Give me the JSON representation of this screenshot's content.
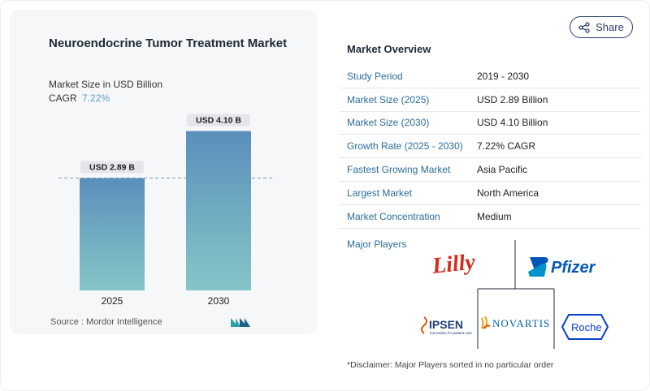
{
  "header": {
    "title": "Neuroendocrine Tumor Treatment Market",
    "subtitle": "Market Size in USD Billion",
    "cagr_label": "CAGR",
    "cagr_value": "7.22%",
    "share_label": "Share"
  },
  "chart_data": {
    "type": "bar",
    "categories": [
      "2025",
      "2030"
    ],
    "values": [
      2.89,
      4.1
    ],
    "data_labels": [
      "USD 2.89 B",
      "USD 4.10 B"
    ],
    "title": "Neuroendocrine Tumor Treatment Market",
    "subtitle": "Market Size in USD Billion",
    "xlabel": "",
    "ylabel": "",
    "ylim": [
      0,
      4.3
    ],
    "grid": false,
    "reference_line": 2.89,
    "colors": {
      "bar_top": "#5b8fbb",
      "bar_bottom": "#86c5c7"
    }
  },
  "source": {
    "label": "Source :",
    "value": "Mordor Intelligence",
    "logo": "mordor-intelligence-logo"
  },
  "overview": {
    "title": "Market Overview",
    "rows": [
      {
        "label": "Study Period",
        "value": "2019 - 2030"
      },
      {
        "label": "Market Size (2025)",
        "value": "USD 2.89 Billion"
      },
      {
        "label": "Market Size (2030)",
        "value": "USD 4.10 Billion"
      },
      {
        "label": "Growth Rate (2025 - 2030)",
        "value": "7.22% CAGR"
      },
      {
        "label": "Fastest Growing Market",
        "value": "Asia Pacific"
      },
      {
        "label": "Largest Market",
        "value": "North America"
      },
      {
        "label": "Market Concentration",
        "value": "Medium"
      }
    ]
  },
  "players": {
    "label": "Major Players",
    "logos": [
      {
        "name": "Lilly",
        "text": "Lilly",
        "color": "#d52b1e"
      },
      {
        "name": "Pfizer",
        "text": "Pfizer",
        "color": "#0057b8"
      },
      {
        "name": "Ipsen",
        "text": "IPSEN",
        "tagline": "Innovation for patient care",
        "color": "#1c3f7a"
      },
      {
        "name": "Novartis",
        "text": "NOVARTIS",
        "color": "#0460a9"
      },
      {
        "name": "Roche",
        "text": "Roche",
        "color": "#0b41cd"
      }
    ]
  },
  "disclaimer": "*Disclaimer: Major Players sorted in no particular order"
}
